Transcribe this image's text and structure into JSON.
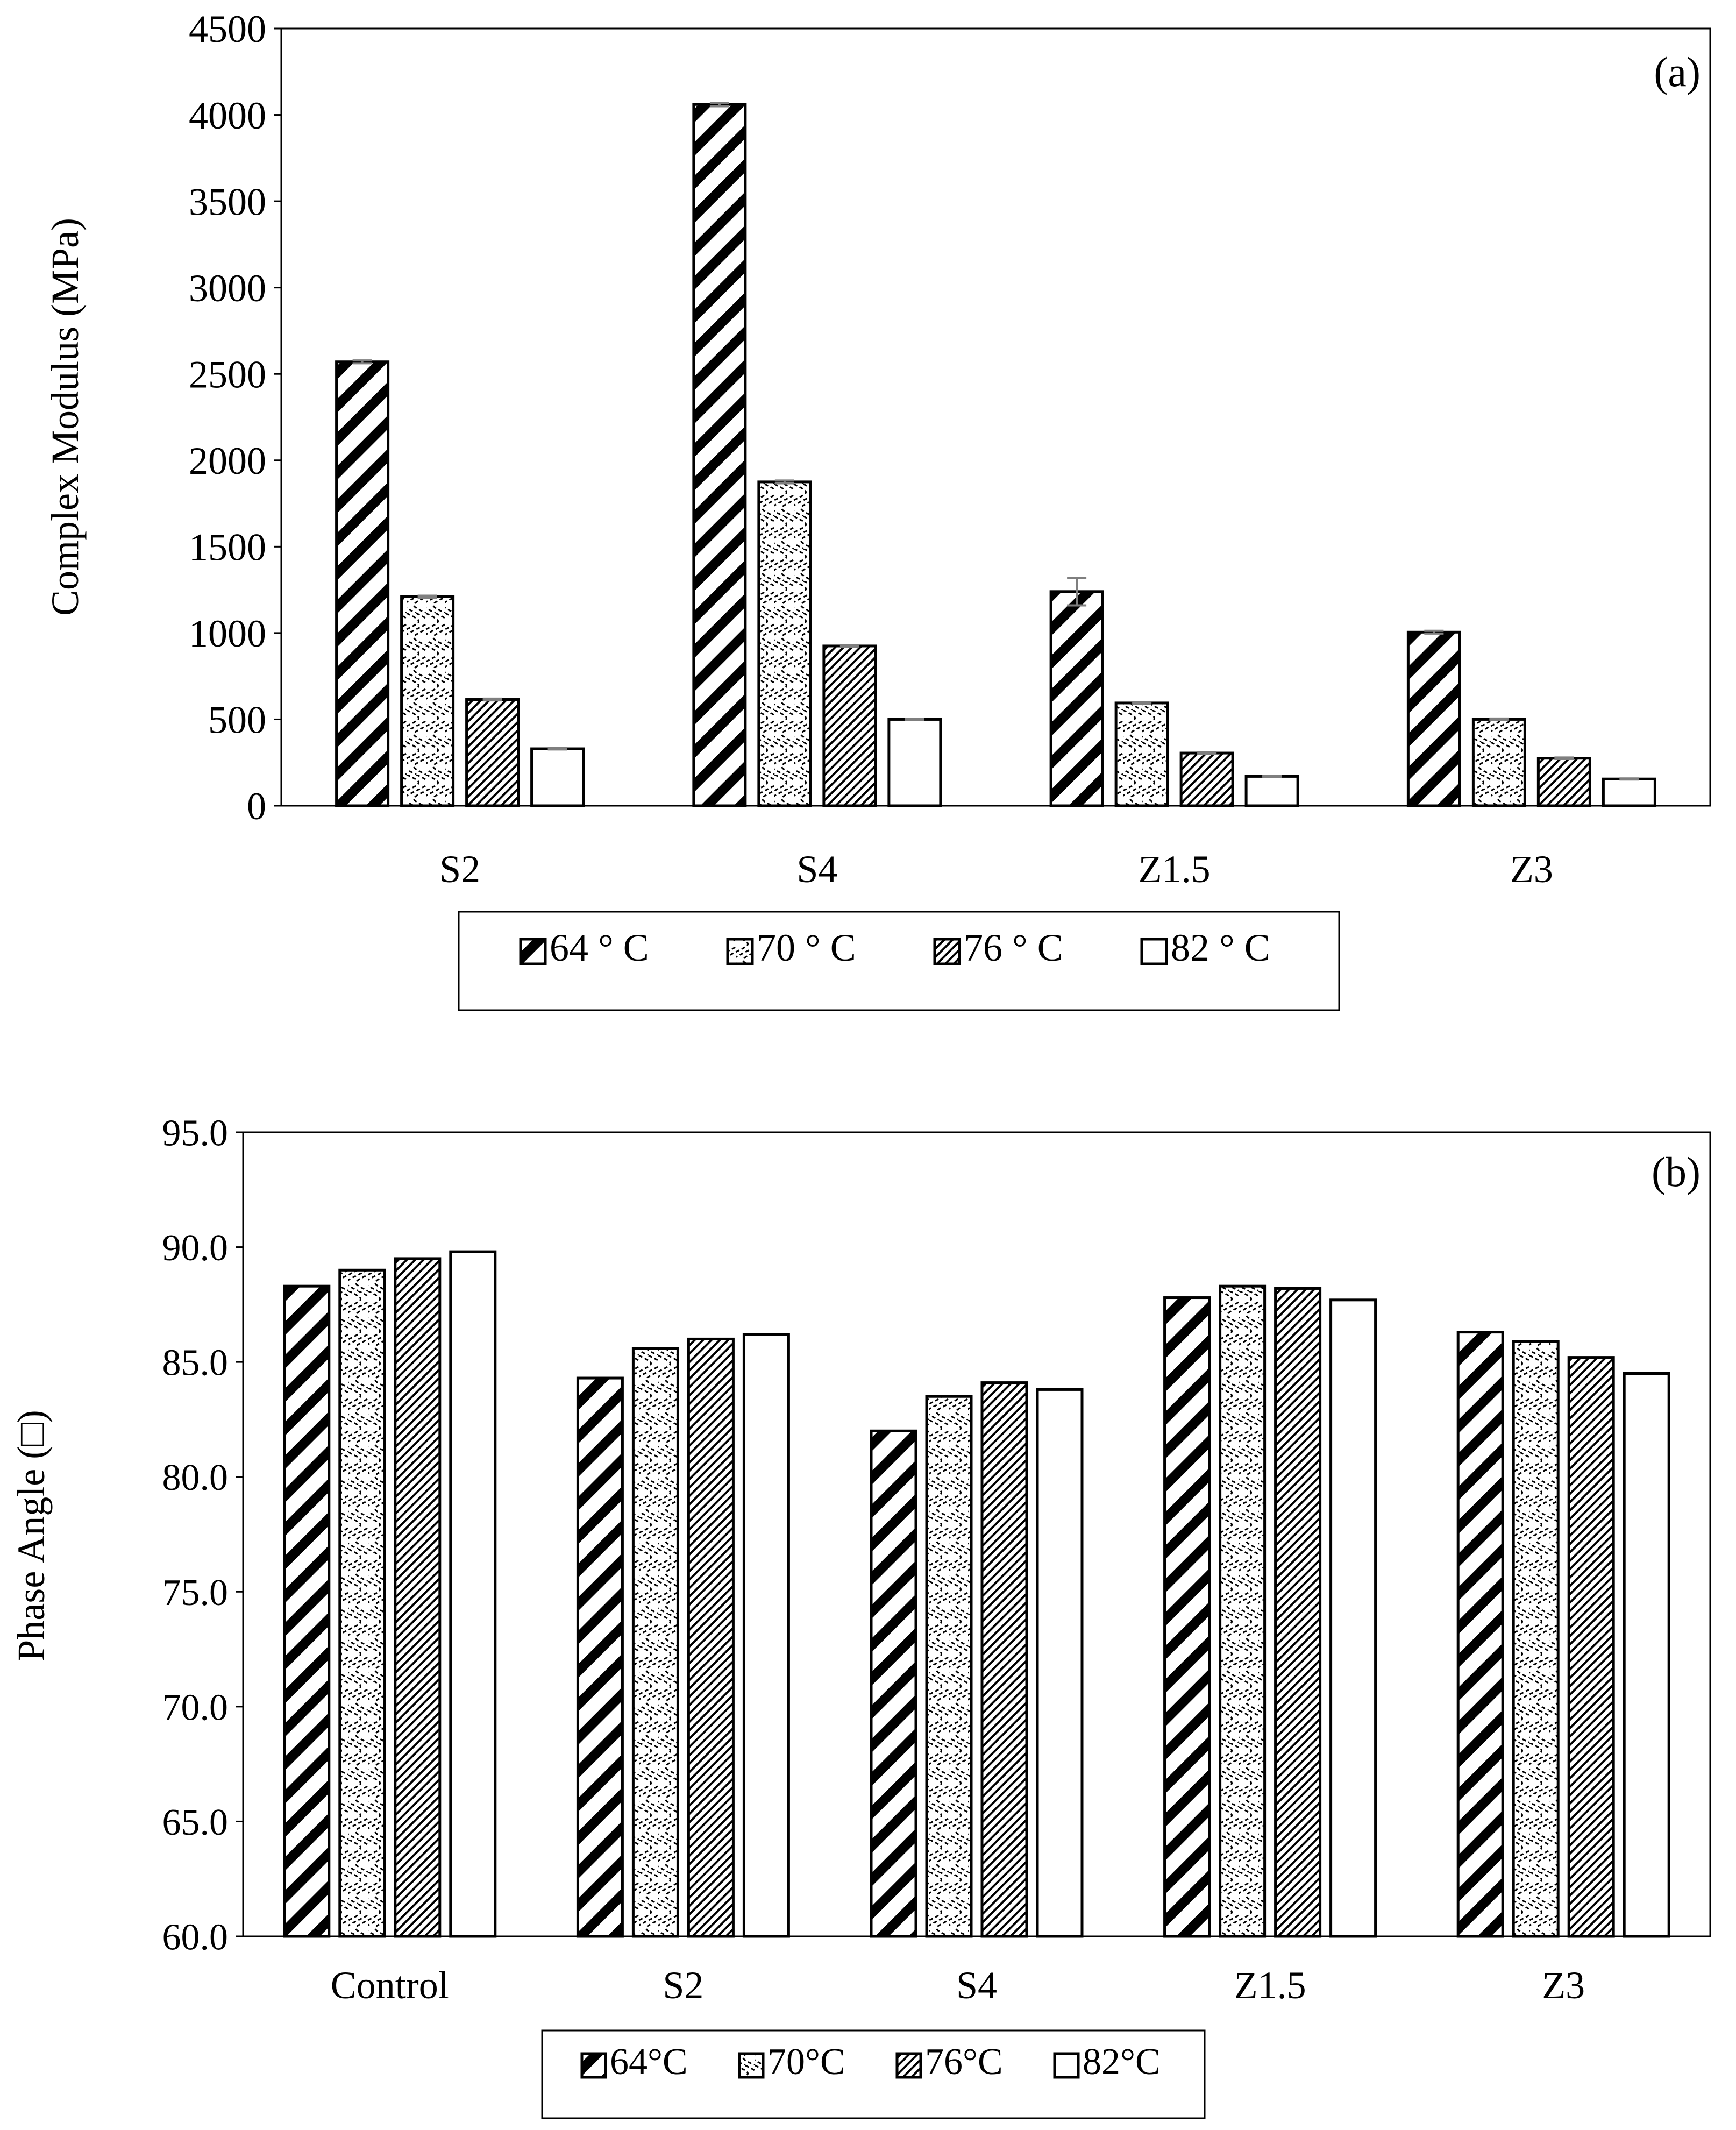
{
  "chart_data": [
    {
      "type": "bar",
      "panel_label": "(a)",
      "xlabel": "",
      "ylabel": "Complex Modulus (MPa)",
      "ylim": [
        0,
        4500
      ],
      "yticks": [
        0,
        500,
        1000,
        1500,
        2000,
        2500,
        3000,
        3500,
        4000,
        4500
      ],
      "ytick_labels": [
        "0",
        "500",
        "1000",
        "1500",
        "2000",
        "2500",
        "3000",
        "3500",
        "4000",
        "4500"
      ],
      "categories": [
        "S2",
        "S4",
        "Z1.5",
        "Z3"
      ],
      "series": [
        {
          "name": "64 ° C",
          "pattern": "diag-hatch",
          "values": [
            2570,
            4060,
            1240,
            1005
          ],
          "errors": [
            8,
            10,
            80,
            8
          ]
        },
        {
          "name": "70 ° C",
          "pattern": "wave",
          "values": [
            1210,
            1875,
            595,
            500
          ],
          "errors": [
            6,
            8,
            6,
            5
          ]
        },
        {
          "name": "76 ° C",
          "pattern": "fine-hatch",
          "values": [
            615,
            925,
            305,
            275
          ],
          "errors": [
            5,
            5,
            5,
            4
          ]
        },
        {
          "name": "82 ° C",
          "pattern": "solid-white",
          "values": [
            330,
            500,
            170,
            155
          ],
          "errors": [
            4,
            4,
            4,
            3
          ]
        }
      ],
      "legend_position": "bottom",
      "grid": false
    },
    {
      "type": "bar",
      "panel_label": "(b)",
      "xlabel": "",
      "ylabel": "Phase Angle (□)",
      "ylim": [
        60,
        95
      ],
      "yticks": [
        60,
        65,
        70,
        75,
        80,
        85,
        90,
        95
      ],
      "ytick_labels": [
        "60.0",
        "65.0",
        "70.0",
        "75.0",
        "80.0",
        "85.0",
        "90.0",
        "95.0"
      ],
      "categories": [
        "Control",
        "S2",
        "S4",
        "Z1.5",
        "Z3"
      ],
      "series": [
        {
          "name": "64°C",
          "pattern": "diag-hatch",
          "values": [
            88.3,
            84.3,
            82.0,
            87.8,
            86.3
          ]
        },
        {
          "name": "70°C",
          "pattern": "wave",
          "values": [
            89.0,
            85.6,
            83.5,
            88.3,
            85.9
          ]
        },
        {
          "name": "76°C",
          "pattern": "fine-hatch",
          "values": [
            89.5,
            86.0,
            84.1,
            88.2,
            85.2
          ]
        },
        {
          "name": "82°C",
          "pattern": "solid-white",
          "values": [
            89.8,
            86.2,
            83.8,
            87.7,
            84.5
          ]
        }
      ],
      "legend_position": "bottom",
      "grid": false
    }
  ]
}
